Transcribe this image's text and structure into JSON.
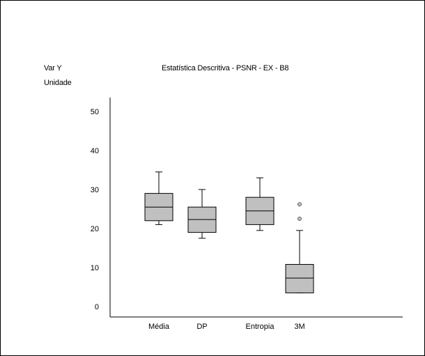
{
  "chart_data": {
    "type": "boxplot",
    "title": "Estatística Descritiva - PSNR - EX - B8",
    "ylabel": "Var Y",
    "yunit": "Unidade",
    "ylim": [
      -2,
      54
    ],
    "yticks": [
      0,
      10,
      20,
      30,
      40,
      50
    ],
    "categories": [
      "Média",
      "DP",
      "Entropia",
      "3M"
    ],
    "series": [
      {
        "category": "Média",
        "whisker_low": 21.0,
        "q1": 22.0,
        "median": 25.5,
        "q3": 29.0,
        "whisker_high": 34.5,
        "outliers": []
      },
      {
        "category": "DP",
        "whisker_low": 17.5,
        "q1": 19.0,
        "median": 22.3,
        "q3": 25.5,
        "whisker_high": 30.0,
        "outliers": []
      },
      {
        "category": "Entropia",
        "whisker_low": 19.5,
        "q1": 21.0,
        "median": 24.5,
        "q3": 28.0,
        "whisker_high": 33.0,
        "outliers": []
      },
      {
        "category": "3M",
        "whisker_low": 3.5,
        "q1": 3.5,
        "median": 7.3,
        "q3": 10.8,
        "whisker_high": 19.5,
        "outliers": [
          22.5,
          26.2
        ]
      }
    ],
    "colors": {
      "box_fill": "#c0c0c0",
      "stroke": "#000000",
      "outlier_fill": "#c0c0c0"
    },
    "grid": false,
    "legend": "none"
  }
}
